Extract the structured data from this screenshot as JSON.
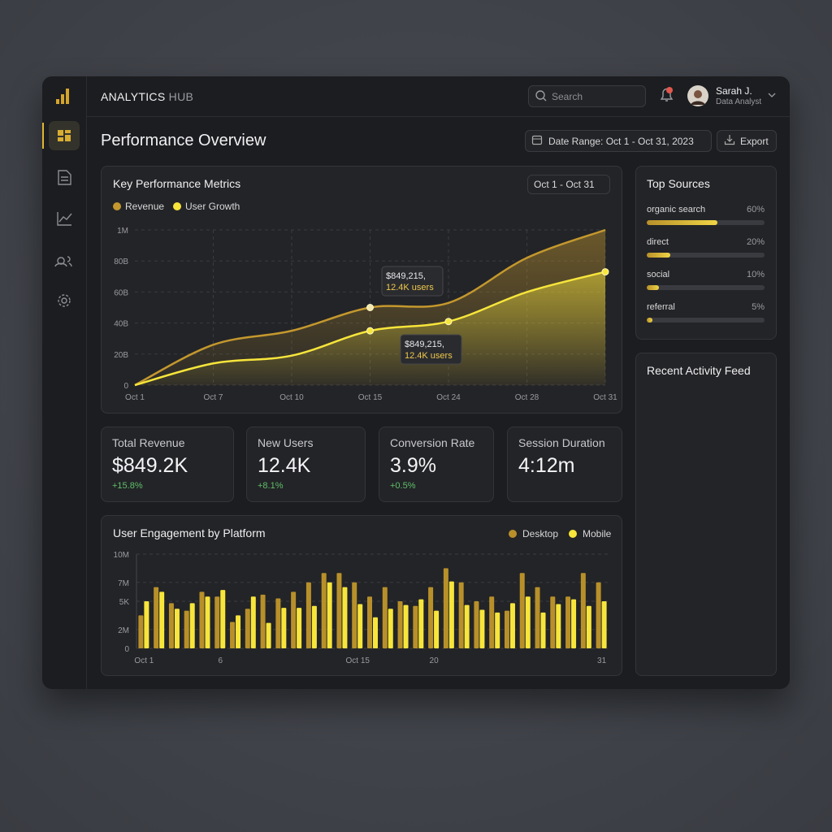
{
  "header": {
    "brand_primary": "ANALYTICS",
    "brand_secondary": "HUB",
    "search_placeholder": "Search",
    "user_name": "Sarah J.",
    "user_role": "Data Analyst"
  },
  "page": {
    "title": "Performance Overview",
    "date_range": "Date Range: Oct 1 - Oct 31, 2023",
    "export": "Export"
  },
  "metrics_card": {
    "title": "Key Performance Metrics",
    "period": "Oct 1 - Oct 31"
  },
  "kpis": [
    {
      "label": "Total Revenue",
      "value": "$849.2K",
      "change": "+15.8%"
    },
    {
      "label": "New Users",
      "value": "12.4K",
      "change": "+8.1%"
    },
    {
      "label": "Conversion Rate",
      "value": "3.9%",
      "change": "+0.5%"
    },
    {
      "label": "Session Duration",
      "value": "4:12m"
    }
  ],
  "top_sources": {
    "title": "Top Sources",
    "items": [
      {
        "name": "organic search",
        "value": 60,
        "value_label": "60%"
      },
      {
        "name": "direct",
        "value": 20,
        "value_label": "20%"
      },
      {
        "name": "social",
        "value": 10,
        "value_label": "10%"
      },
      {
        "name": "referral",
        "value": 5,
        "value_label": "5%"
      }
    ]
  },
  "activity_feed": {
    "title": "Recent Activity Feed"
  },
  "chart_data": [
    {
      "type": "line",
      "categories": [
        "Oct 1",
        "Oct 7",
        "Oct 10",
        "Oct 15",
        "Oct 24",
        "Oct 28",
        "Oct 31"
      ],
      "series": [
        {
          "name": "Revenue",
          "color": "#c4982e",
          "values": [
            0,
            26,
            35,
            50,
            53,
            82,
            100
          ]
        },
        {
          "name": "User Growth",
          "color": "#f7e53b",
          "values": [
            0,
            14,
            19,
            35,
            41,
            60,
            73
          ]
        }
      ],
      "ylim": [
        0,
        100
      ],
      "yticks": [
        0,
        {
          "value": 20,
          "label": "20B"
        },
        {
          "value": 40,
          "label": "40B"
        },
        {
          "value": 60,
          "label": "60B"
        },
        {
          "value": 80,
          "label": "80B"
        },
        {
          "value": 100,
          "label": "1M"
        }
      ],
      "grid": true,
      "annotations": [
        [
          "$849,215,",
          "12.4K users"
        ],
        [
          "$849,215,",
          "12.4K users"
        ]
      ]
    },
    {
      "type": "bar",
      "title": "User Engagement by Platform",
      "categories": [
        "Oct 1",
        null,
        null,
        null,
        null,
        "6",
        null,
        null,
        null,
        null,
        null,
        null,
        null,
        null,
        "Oct 15",
        null,
        null,
        null,
        null,
        "20",
        null,
        null,
        null,
        null,
        null,
        null,
        null,
        null,
        null,
        null,
        "31"
      ],
      "series": [
        {
          "name": "Desktop",
          "color": "#b8902a",
          "values": [
            3.5,
            6.5,
            4.8,
            4,
            6,
            5.5,
            2.8,
            4.2,
            5.7,
            5.3,
            6,
            7,
            8,
            8,
            7,
            5.5,
            6.5,
            5,
            4.5,
            6.5,
            8.5,
            7,
            5,
            5.5,
            4,
            8,
            6.5,
            5.5,
            5.5,
            8,
            7
          ]
        },
        {
          "name": "Mobile",
          "color": "#f7e53b",
          "values": [
            5,
            6,
            4.2,
            4.8,
            5.5,
            6.2,
            3.5,
            5.5,
            2.7,
            4.3,
            4.3,
            4.5,
            7,
            6.5,
            4.7,
            3.3,
            4.2,
            4.6,
            5.2,
            4,
            7.1,
            4.6,
            4.1,
            3.8,
            4.8,
            5.5,
            3.8,
            4.7,
            5.2,
            4.5,
            5
          ]
        }
      ],
      "ylim": [
        0,
        10
      ],
      "yticks": [
        0,
        {
          "value": 2,
          "label": "2M"
        },
        {
          "value": 5,
          "label": "5K"
        },
        {
          "value": 7,
          "label": "7M"
        },
        {
          "value": 10,
          "label": "10M"
        }
      ],
      "grid": true,
      "legend": "top-right"
    }
  ]
}
